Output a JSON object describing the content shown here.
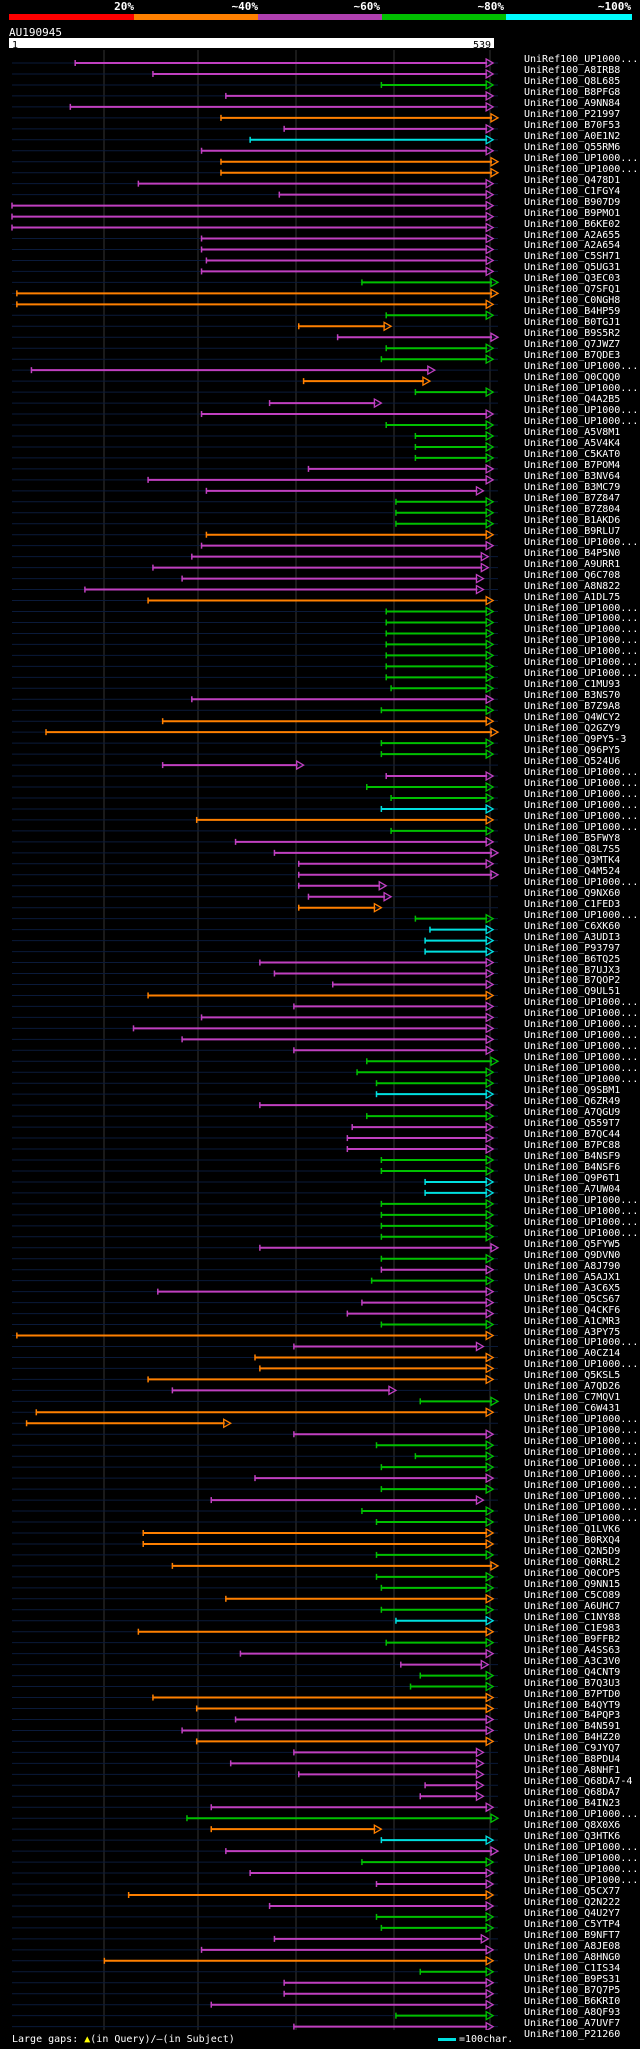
{
  "scale": {
    "labels": [
      "20%",
      "~40%",
      "~60%",
      "~80%",
      "~100%"
    ],
    "colors": [
      "#ff0000",
      "#ff8000",
      "#b040b0",
      "#00c000",
      "#00ffff"
    ]
  },
  "query": {
    "id": "AU190945",
    "start": "1",
    "end": "539"
  },
  "legend": {
    "large_gaps": "Large gaps: ",
    "in_query": "(in Query)/",
    "in_subject": "(in Subject)",
    "char_note": "=100char."
  },
  "colors": {
    "orange": "#ff8000",
    "purple": "#c040c0",
    "green": "#00c000",
    "cyan": "#00e0e0"
  },
  "hits": [
    {
      "label": "UniRef100_UP1000...",
      "s": 0.13,
      "e": 0.99,
      "c": "purple"
    },
    {
      "label": "UniRef100_A8IRB8",
      "s": 0.29,
      "e": 0.99,
      "c": "purple"
    },
    {
      "label": "UniRef100_Q8L685",
      "s": 0.76,
      "e": 0.99,
      "c": "green"
    },
    {
      "label": "UniRef100_B8PFG8",
      "s": 0.44,
      "e": 0.99,
      "c": "purple"
    },
    {
      "label": "UniRef100_A9NN84",
      "s": 0.12,
      "e": 0.99,
      "c": "purple"
    },
    {
      "label": "UniRef100_P21997",
      "s": 0.43,
      "e": 1.0,
      "c": "orange"
    },
    {
      "label": "UniRef100_B70F53",
      "s": 0.56,
      "e": 0.99,
      "c": "purple"
    },
    {
      "label": "UniRef100_A0E1N2",
      "s": 0.49,
      "e": 0.99,
      "c": "cyan"
    },
    {
      "label": "UniRef100_Q55RM6",
      "s": 0.39,
      "e": 0.99,
      "c": "purple"
    },
    {
      "label": "UniRef100_UP1000...",
      "s": 0.43,
      "e": 1.0,
      "c": "orange"
    },
    {
      "label": "UniRef100_UP1000...",
      "s": 0.43,
      "e": 1.0,
      "c": "orange"
    },
    {
      "label": "UniRef100_Q478D1",
      "s": 0.26,
      "e": 0.99,
      "c": "purple"
    },
    {
      "label": "UniRef100_C1FGY4",
      "s": 0.55,
      "e": 0.99,
      "c": "purple"
    },
    {
      "label": "UniRef100_B907D9",
      "s": 0.0,
      "e": 0.99,
      "c": "purple"
    },
    {
      "label": "UniRef100_B9PMO1",
      "s": 0.0,
      "e": 0.99,
      "c": "purple"
    },
    {
      "label": "UniRef100_B6KE02",
      "s": 0.0,
      "e": 0.99,
      "c": "purple"
    },
    {
      "label": "UniRef100_A2A655",
      "s": 0.39,
      "e": 0.99,
      "c": "purple"
    },
    {
      "label": "UniRef100_A2A654",
      "s": 0.39,
      "e": 0.99,
      "c": "purple"
    },
    {
      "label": "UniRef100_C5SH71",
      "s": 0.4,
      "e": 0.99,
      "c": "purple"
    },
    {
      "label": "UniRef100_Q5UG31",
      "s": 0.39,
      "e": 0.99,
      "c": "purple"
    },
    {
      "label": "UniRef100_Q3EC03",
      "s": 0.72,
      "e": 1.0,
      "c": "green"
    },
    {
      "label": "UniRef100_Q7SFQ1",
      "s": 0.01,
      "e": 1.0,
      "c": "orange"
    },
    {
      "label": "UniRef100_C0NGH8",
      "s": 0.01,
      "e": 0.99,
      "c": "orange"
    },
    {
      "label": "UniRef100_B4HP59",
      "s": 0.77,
      "e": 0.99,
      "c": "green"
    },
    {
      "label": "UniRef100_B0TGJ1",
      "s": 0.59,
      "e": 0.78,
      "c": "orange"
    },
    {
      "label": "UniRef100_B9S5R2",
      "s": 0.67,
      "e": 1.0,
      "c": "purple"
    },
    {
      "label": "UniRef100_Q7JWZ7",
      "s": 0.77,
      "e": 0.99,
      "c": "green"
    },
    {
      "label": "UniRef100_B7QDE3",
      "s": 0.76,
      "e": 0.99,
      "c": "green"
    },
    {
      "label": "UniRef100_UP1000...",
      "s": 0.04,
      "e": 0.87,
      "c": "purple"
    },
    {
      "label": "UniRef100_Q0CQQ0",
      "s": 0.6,
      "e": 0.86,
      "c": "orange"
    },
    {
      "label": "UniRef100_UP1000...",
      "s": 0.83,
      "e": 0.99,
      "c": "green"
    },
    {
      "label": "UniRef100_Q4A2B5",
      "s": 0.53,
      "e": 0.76,
      "c": "purple"
    },
    {
      "label": "UniRef100_UP1000...",
      "s": 0.39,
      "e": 0.99,
      "c": "purple"
    },
    {
      "label": "UniRef100_UP1000...",
      "s": 0.77,
      "e": 0.99,
      "c": "green"
    },
    {
      "label": "UniRef100_A5V8M1",
      "s": 0.83,
      "e": 0.99,
      "c": "green"
    },
    {
      "label": "UniRef100_A5V4K4",
      "s": 0.83,
      "e": 0.99,
      "c": "green"
    },
    {
      "label": "UniRef100_C5KAT0",
      "s": 0.83,
      "e": 0.99,
      "c": "green"
    },
    {
      "label": "UniRef100_B7POM4",
      "s": 0.61,
      "e": 0.99,
      "c": "purple"
    },
    {
      "label": "UniRef100_B3NV64",
      "s": 0.28,
      "e": 0.99,
      "c": "purple"
    },
    {
      "label": "UniRef100_B3MC79",
      "s": 0.4,
      "e": 0.97,
      "c": "purple"
    },
    {
      "label": "UniRef100_B7Z847",
      "s": 0.79,
      "e": 0.99,
      "c": "green"
    },
    {
      "label": "UniRef100_B7Z804",
      "s": 0.79,
      "e": 0.99,
      "c": "green"
    },
    {
      "label": "UniRef100_B1AKD6",
      "s": 0.79,
      "e": 0.99,
      "c": "green"
    },
    {
      "label": "UniRef100_B9RLU7",
      "s": 0.4,
      "e": 0.99,
      "c": "orange"
    },
    {
      "label": "UniRef100_UP1000...",
      "s": 0.39,
      "e": 0.99,
      "c": "purple"
    },
    {
      "label": "UniRef100_B4P5N0",
      "s": 0.37,
      "e": 0.98,
      "c": "purple"
    },
    {
      "label": "UniRef100_A9URR1",
      "s": 0.29,
      "e": 0.98,
      "c": "purple"
    },
    {
      "label": "UniRef100_Q6C708",
      "s": 0.35,
      "e": 0.97,
      "c": "purple"
    },
    {
      "label": "UniRef100_A8N822",
      "s": 0.15,
      "e": 0.97,
      "c": "purple"
    },
    {
      "label": "UniRef100_A1DL75",
      "s": 0.28,
      "e": 0.99,
      "c": "orange"
    },
    {
      "label": "UniRef100_UP1000...",
      "s": 0.77,
      "e": 0.99,
      "c": "green"
    },
    {
      "label": "UniRef100_UP1000...",
      "s": 0.77,
      "e": 0.99,
      "c": "green"
    },
    {
      "label": "UniRef100_UP1000...",
      "s": 0.77,
      "e": 0.99,
      "c": "green"
    },
    {
      "label": "UniRef100_UP1000...",
      "s": 0.77,
      "e": 0.99,
      "c": "green"
    },
    {
      "label": "UniRef100_UP1000...",
      "s": 0.77,
      "e": 0.99,
      "c": "green"
    },
    {
      "label": "UniRef100_UP1000...",
      "s": 0.77,
      "e": 0.99,
      "c": "green"
    },
    {
      "label": "UniRef100_UP1000...",
      "s": 0.77,
      "e": 0.99,
      "c": "green"
    },
    {
      "label": "UniRef100_C1MU93",
      "s": 0.78,
      "e": 0.99,
      "c": "green"
    },
    {
      "label": "UniRef100_B3NS70",
      "s": 0.37,
      "e": 0.99,
      "c": "purple"
    },
    {
      "label": "UniRef100_B7Z9A8",
      "s": 0.76,
      "e": 0.99,
      "c": "green"
    },
    {
      "label": "UniRef100_Q4WCY2",
      "s": 0.31,
      "e": 0.99,
      "c": "orange"
    },
    {
      "label": "UniRef100_Q2GZY9",
      "s": 0.07,
      "e": 1.0,
      "c": "orange"
    },
    {
      "label": "UniRef100_Q9PY5-3",
      "s": 0.76,
      "e": 0.99,
      "c": "green"
    },
    {
      "label": "UniRef100_Q96PY5",
      "s": 0.76,
      "e": 0.99,
      "c": "green"
    },
    {
      "label": "UniRef100_Q524U6",
      "s": 0.31,
      "e": 0.6,
      "c": "purple"
    },
    {
      "label": "UniRef100_UP1000...",
      "s": 0.77,
      "e": 0.99,
      "c": "purple"
    },
    {
      "label": "UniRef100_UP1000...",
      "s": 0.73,
      "e": 0.99,
      "c": "green"
    },
    {
      "label": "UniRef100_UP1000...",
      "s": 0.78,
      "e": 0.99,
      "c": "green"
    },
    {
      "label": "UniRef100_UP1000...",
      "s": 0.76,
      "e": 0.99,
      "c": "cyan"
    },
    {
      "label": "UniRef100_UP1000...",
      "s": 0.38,
      "e": 0.99,
      "c": "orange"
    },
    {
      "label": "UniRef100_UP1000...",
      "s": 0.78,
      "e": 0.99,
      "c": "green"
    },
    {
      "label": "UniRef100_B5FWY8",
      "s": 0.46,
      "e": 0.99,
      "c": "purple"
    },
    {
      "label": "UniRef100_Q8L7S5",
      "s": 0.54,
      "e": 1.0,
      "c": "purple"
    },
    {
      "label": "UniRef100_Q3MTK4",
      "s": 0.59,
      "e": 0.99,
      "c": "purple"
    },
    {
      "label": "UniRef100_Q4M524",
      "s": 0.59,
      "e": 1.0,
      "c": "purple"
    },
    {
      "label": "UniRef100_UP1000...",
      "s": 0.59,
      "e": 0.77,
      "c": "purple"
    },
    {
      "label": "UniRef100_Q9NX60",
      "s": 0.61,
      "e": 0.78,
      "c": "purple"
    },
    {
      "label": "UniRef100_C1FED3",
      "s": 0.59,
      "e": 0.76,
      "c": "orange"
    },
    {
      "label": "UniRef100_UP1000...",
      "s": 0.83,
      "e": 0.99,
      "c": "green"
    },
    {
      "label": "UniRef100_C6XK60",
      "s": 0.86,
      "e": 0.99,
      "c": "cyan"
    },
    {
      "label": "UniRef100_A3UDI3",
      "s": 0.85,
      "e": 0.99,
      "c": "cyan"
    },
    {
      "label": "UniRef100_P93797",
      "s": 0.85,
      "e": 0.99,
      "c": "cyan"
    },
    {
      "label": "UniRef100_B6TQ25",
      "s": 0.51,
      "e": 0.99,
      "c": "purple"
    },
    {
      "label": "UniRef100_B7UJX3",
      "s": 0.54,
      "e": 0.99,
      "c": "purple"
    },
    {
      "label": "UniRef100_B7QOP2",
      "s": 0.66,
      "e": 0.99,
      "c": "purple"
    },
    {
      "label": "UniRef100_Q9UL51",
      "s": 0.28,
      "e": 0.99,
      "c": "orange"
    },
    {
      "label": "UniRef100_UP1000...",
      "s": 0.58,
      "e": 0.99,
      "c": "purple"
    },
    {
      "label": "UniRef100_UP1000...",
      "s": 0.39,
      "e": 0.99,
      "c": "purple"
    },
    {
      "label": "UniRef100_UP1000...",
      "s": 0.25,
      "e": 0.99,
      "c": "purple"
    },
    {
      "label": "UniRef100_UP1000...",
      "s": 0.35,
      "e": 0.99,
      "c": "purple"
    },
    {
      "label": "UniRef100_UP1000...",
      "s": 0.58,
      "e": 0.99,
      "c": "purple"
    },
    {
      "label": "UniRef100_UP1000...",
      "s": 0.73,
      "e": 1.0,
      "c": "green"
    },
    {
      "label": "UniRef100_UP1000...",
      "s": 0.71,
      "e": 0.99,
      "c": "green"
    },
    {
      "label": "UniRef100_UP1000...",
      "s": 0.75,
      "e": 0.99,
      "c": "green"
    },
    {
      "label": "UniRef100_Q9SBM1",
      "s": 0.75,
      "e": 0.99,
      "c": "cyan"
    },
    {
      "label": "UniRef100_Q6ZR49",
      "s": 0.51,
      "e": 0.99,
      "c": "purple"
    },
    {
      "label": "UniRef100_A7QGU9",
      "s": 0.73,
      "e": 0.99,
      "c": "green"
    },
    {
      "label": "UniRef100_Q559T7",
      "s": 0.7,
      "e": 0.99,
      "c": "purple"
    },
    {
      "label": "UniRef100_B7QC44",
      "s": 0.69,
      "e": 0.99,
      "c": "purple"
    },
    {
      "label": "UniRef100_B7PC88",
      "s": 0.69,
      "e": 0.99,
      "c": "purple"
    },
    {
      "label": "UniRef100_B4NSF9",
      "s": 0.76,
      "e": 0.99,
      "c": "green"
    },
    {
      "label": "UniRef100_B4NSF6",
      "s": 0.76,
      "e": 0.99,
      "c": "green"
    },
    {
      "label": "UniRef100_Q9P6T1",
      "s": 0.85,
      "e": 0.99,
      "c": "cyan"
    },
    {
      "label": "UniRef100_A7UW04",
      "s": 0.85,
      "e": 0.99,
      "c": "cyan"
    },
    {
      "label": "UniRef100_UP1000...",
      "s": 0.76,
      "e": 0.99,
      "c": "green"
    },
    {
      "label": "UniRef100_UP1000...",
      "s": 0.76,
      "e": 0.99,
      "c": "green"
    },
    {
      "label": "UniRef100_UP1000...",
      "s": 0.76,
      "e": 0.99,
      "c": "green"
    },
    {
      "label": "UniRef100_UP1000...",
      "s": 0.76,
      "e": 0.99,
      "c": "green"
    },
    {
      "label": "UniRef100_Q5FYW5",
      "s": 0.51,
      "e": 1.0,
      "c": "purple"
    },
    {
      "label": "UniRef100_Q9DVN0",
      "s": 0.76,
      "e": 0.99,
      "c": "green"
    },
    {
      "label": "UniRef100_A8J790",
      "s": 0.76,
      "e": 0.99,
      "c": "purple"
    },
    {
      "label": "UniRef100_A5AJX1",
      "s": 0.74,
      "e": 0.99,
      "c": "green"
    },
    {
      "label": "UniRef100_A3C6X5",
      "s": 0.3,
      "e": 0.99,
      "c": "purple"
    },
    {
      "label": "UniRef100_Q5CS67",
      "s": 0.72,
      "e": 0.99,
      "c": "purple"
    },
    {
      "label": "UniRef100_Q4CKF6",
      "s": 0.69,
      "e": 0.99,
      "c": "purple"
    },
    {
      "label": "UniRef100_A1CMR3",
      "s": 0.76,
      "e": 0.99,
      "c": "green"
    },
    {
      "label": "UniRef100_A3PY75",
      "s": 0.01,
      "e": 0.99,
      "c": "orange"
    },
    {
      "label": "UniRef100_UP1000...",
      "s": 0.58,
      "e": 0.97,
      "c": "purple"
    },
    {
      "label": "UniRef100_A0CZ14",
      "s": 0.5,
      "e": 0.99,
      "c": "orange"
    },
    {
      "label": "UniRef100_UP1000...",
      "s": 0.51,
      "e": 0.99,
      "c": "orange"
    },
    {
      "label": "UniRef100_Q5KSL5",
      "s": 0.28,
      "e": 0.99,
      "c": "orange"
    },
    {
      "label": "UniRef100_A7QD26",
      "s": 0.33,
      "e": 0.79,
      "c": "purple"
    },
    {
      "label": "UniRef100_C7MQV1",
      "s": 0.84,
      "e": 1.0,
      "c": "green"
    },
    {
      "label": "UniRef100_C6W431",
      "s": 0.05,
      "e": 0.99,
      "c": "orange"
    },
    {
      "label": "UniRef100_UP1000...",
      "s": 0.03,
      "e": 0.45,
      "c": "orange"
    },
    {
      "label": "UniRef100_UP1000...",
      "s": 0.58,
      "e": 0.99,
      "c": "purple"
    },
    {
      "label": "UniRef100_UP1000...",
      "s": 0.75,
      "e": 0.99,
      "c": "green"
    },
    {
      "label": "UniRef100_UP1000...",
      "s": 0.83,
      "e": 0.99,
      "c": "green"
    },
    {
      "label": "UniRef100_UP1000...",
      "s": 0.76,
      "e": 0.99,
      "c": "green"
    },
    {
      "label": "UniRef100_UP1000...",
      "s": 0.5,
      "e": 0.99,
      "c": "purple"
    },
    {
      "label": "UniRef100_UP1000...",
      "s": 0.76,
      "e": 0.99,
      "c": "green"
    },
    {
      "label": "UniRef100_UP1000...",
      "s": 0.41,
      "e": 0.97,
      "c": "purple"
    },
    {
      "label": "UniRef100_UP1000...",
      "s": 0.72,
      "e": 0.99,
      "c": "green"
    },
    {
      "label": "UniRef100_UP1000...",
      "s": 0.75,
      "e": 0.99,
      "c": "green"
    },
    {
      "label": "UniRef100_Q1LVK6",
      "s": 0.27,
      "e": 0.99,
      "c": "orange"
    },
    {
      "label": "UniRef100_B0RXQ4",
      "s": 0.27,
      "e": 0.99,
      "c": "orange"
    },
    {
      "label": "UniRef100_Q2N5D9",
      "s": 0.75,
      "e": 0.99,
      "c": "green"
    },
    {
      "label": "UniRef100_Q0RRL2",
      "s": 0.33,
      "e": 1.0,
      "c": "orange"
    },
    {
      "label": "UniRef100_Q0COP5",
      "s": 0.75,
      "e": 0.99,
      "c": "green"
    },
    {
      "label": "UniRef100_Q9NN15",
      "s": 0.76,
      "e": 0.99,
      "c": "green"
    },
    {
      "label": "UniRef100_C5CO89",
      "s": 0.44,
      "e": 0.99,
      "c": "orange"
    },
    {
      "label": "UniRef100_A6UHC7",
      "s": 0.76,
      "e": 0.99,
      "c": "green"
    },
    {
      "label": "UniRef100_C1NY88",
      "s": 0.79,
      "e": 0.99,
      "c": "cyan"
    },
    {
      "label": "UniRef100_C1E983",
      "s": 0.26,
      "e": 0.99,
      "c": "orange"
    },
    {
      "label": "UniRef100_B9FFB2",
      "s": 0.77,
      "e": 0.99,
      "c": "green"
    },
    {
      "label": "UniRef100_A4SS63",
      "s": 0.47,
      "e": 0.99,
      "c": "purple"
    },
    {
      "label": "UniRef100_A3C3V0",
      "s": 0.8,
      "e": 0.98,
      "c": "purple"
    },
    {
      "label": "UniRef100_Q4CNT9",
      "s": 0.84,
      "e": 0.99,
      "c": "green"
    },
    {
      "label": "UniRef100_B7Q3U3",
      "s": 0.82,
      "e": 0.99,
      "c": "green"
    },
    {
      "label": "UniRef100_B7PTD0",
      "s": 0.29,
      "e": 0.99,
      "c": "orange"
    },
    {
      "label": "UniRef100_B4QYT9",
      "s": 0.38,
      "e": 0.99,
      "c": "orange"
    },
    {
      "label": "UniRef100_B4PQP3",
      "s": 0.46,
      "e": 0.99,
      "c": "purple"
    },
    {
      "label": "UniRef100_B4N591",
      "s": 0.35,
      "e": 0.99,
      "c": "purple"
    },
    {
      "label": "UniRef100_B4HZ20",
      "s": 0.38,
      "e": 0.99,
      "c": "orange"
    },
    {
      "label": "UniRef100_C9JYQ7",
      "s": 0.58,
      "e": 0.97,
      "c": "purple"
    },
    {
      "label": "UniRef100_B8PDU4",
      "s": 0.45,
      "e": 0.97,
      "c": "purple"
    },
    {
      "label": "UniRef100_A8NHF1",
      "s": 0.59,
      "e": 0.97,
      "c": "purple"
    },
    {
      "label": "UniRef100_Q68DA7-4",
      "s": 0.85,
      "e": 0.97,
      "c": "purple"
    },
    {
      "label": "UniRef100_Q68DA7",
      "s": 0.84,
      "e": 0.97,
      "c": "purple"
    },
    {
      "label": "UniRef100_B4IN23",
      "s": 0.41,
      "e": 0.99,
      "c": "purple"
    },
    {
      "label": "UniRef100_UP1000...",
      "s": 0.36,
      "e": 1.0,
      "c": "green"
    },
    {
      "label": "UniRef100_Q8X0X6",
      "s": 0.41,
      "e": 0.76,
      "c": "orange"
    },
    {
      "label": "UniRef100_Q3HTK6",
      "s": 0.76,
      "e": 0.99,
      "c": "cyan"
    },
    {
      "label": "UniRef100_UP1000...",
      "s": 0.44,
      "e": 1.0,
      "c": "purple"
    },
    {
      "label": "UniRef100_UP1000...",
      "s": 0.72,
      "e": 0.99,
      "c": "green"
    },
    {
      "label": "UniRef100_UP1000...",
      "s": 0.49,
      "e": 0.99,
      "c": "purple"
    },
    {
      "label": "UniRef100_UP1000...",
      "s": 0.75,
      "e": 0.99,
      "c": "purple"
    },
    {
      "label": "UniRef100_Q5CX77",
      "s": 0.24,
      "e": 0.99,
      "c": "orange"
    },
    {
      "label": "UniRef100_Q2N222",
      "s": 0.53,
      "e": 0.99,
      "c": "purple"
    },
    {
      "label": "UniRef100_Q4U2Y7",
      "s": 0.75,
      "e": 0.99,
      "c": "green"
    },
    {
      "label": "UniRef100_C5YTP4",
      "s": 0.76,
      "e": 0.99,
      "c": "green"
    },
    {
      "label": "UniRef100_B9NFT7",
      "s": 0.54,
      "e": 0.98,
      "c": "purple"
    },
    {
      "label": "UniRef100_A8JE08",
      "s": 0.39,
      "e": 0.99,
      "c": "purple"
    },
    {
      "label": "UniRef100_A8HNG0",
      "s": 0.19,
      "e": 0.99,
      "c": "orange"
    },
    {
      "label": "UniRef100_C1IS34",
      "s": 0.84,
      "e": 0.99,
      "c": "green"
    },
    {
      "label": "UniRef100_B9PS31",
      "s": 0.56,
      "e": 0.99,
      "c": "purple"
    },
    {
      "label": "UniRef100_B7Q7P5",
      "s": 0.56,
      "e": 0.99,
      "c": "purple"
    },
    {
      "label": "UniRef100_B6KRI0",
      "s": 0.41,
      "e": 0.99,
      "c": "purple"
    },
    {
      "label": "UniRef100_A8QF93",
      "s": 0.79,
      "e": 0.99,
      "c": "green"
    },
    {
      "label": "UniRef100_A7UVF7",
      "s": 0.58,
      "e": 0.99,
      "c": "purple"
    },
    {
      "label": "UniRef100_P21260",
      "s": 0.75,
      "e": 0.99,
      "c": "green"
    }
  ]
}
